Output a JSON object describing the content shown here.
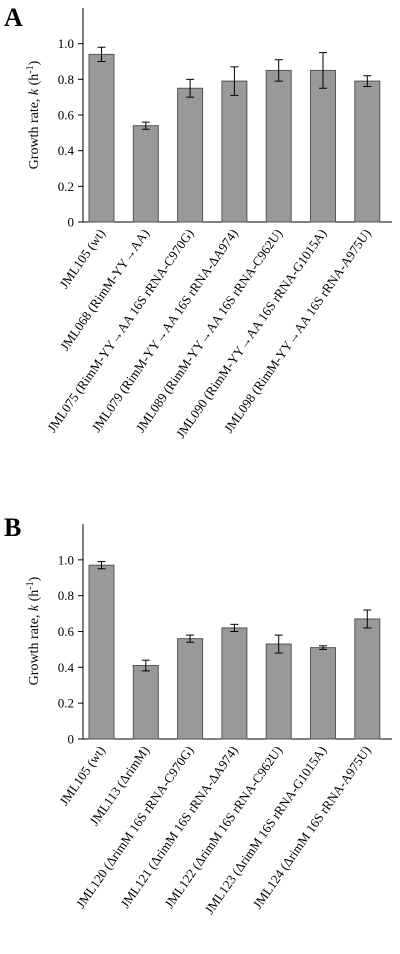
{
  "chart_data": [
    {
      "type": "bar",
      "panel_label": "A",
      "ylabel_main": "Growth rate, ",
      "ylabel_italic": "k",
      "ylabel_unit": " (h",
      "ylabel_sup": "-1",
      "ylabel_close": ")",
      "ylim": [
        0,
        1.2
      ],
      "yticks": [
        "0",
        "0.2",
        "0.4",
        "0.6",
        "0.8",
        "1.0"
      ],
      "categories": [
        "JML105 (wt)",
        "JML068 (RimM-YY→AA)",
        "JML075 (RimM-YY→AA 16S rRNA-C970G)",
        "JML079 (RimM-YY→AA 16S rRNA-ΔA974)",
        "JML089 (RimM-YY→AA 16S rRNA-C962U)",
        "JML090 (RimM-YY→AA 16S rRNA-G1015A)",
        "JML098 (RimM-YY→AA 16S rRNA-A975U)"
      ],
      "values": [
        0.94,
        0.54,
        0.75,
        0.79,
        0.85,
        0.85,
        0.79
      ],
      "errors": [
        0.04,
        0.02,
        0.05,
        0.08,
        0.06,
        0.1,
        0.03
      ]
    },
    {
      "type": "bar",
      "panel_label": "B",
      "ylabel_main": "Growth rate, ",
      "ylabel_italic": "k",
      "ylabel_unit": " (h",
      "ylabel_sup": "-1",
      "ylabel_close": ")",
      "ylim": [
        0,
        1.2
      ],
      "yticks": [
        "0",
        "0.2",
        "0.4",
        "0.6",
        "0.8",
        "1.0"
      ],
      "categories": [
        "JML105 (wt)",
        "JML113 (ΔrimM)",
        "JML120 (ΔrimM 16S rRNA-C970G)",
        "JML121 (ΔrimM 16S rRNA-ΔA974)",
        "JML122 (ΔrimM 16S rRNA-C962U)",
        "JML123 (ΔrimM 16S rRNA-G1015A)",
        "JML124 (ΔrimM 16S rRNA-A975U)"
      ],
      "values": [
        0.97,
        0.41,
        0.56,
        0.62,
        0.53,
        0.51,
        0.67
      ],
      "errors": [
        0.02,
        0.03,
        0.02,
        0.02,
        0.05,
        0.01,
        0.05
      ]
    }
  ]
}
